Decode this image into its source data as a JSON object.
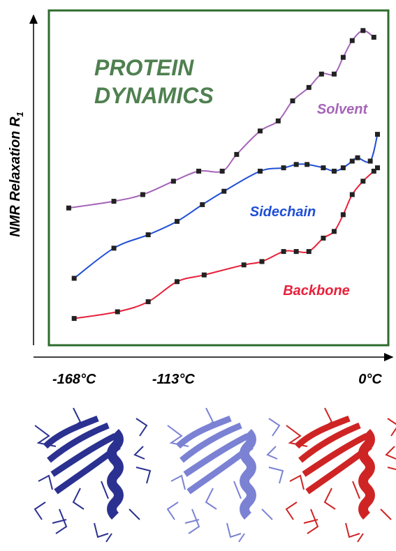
{
  "chart_data": {
    "type": "scatter",
    "title": "PROTEIN DYNAMICS",
    "y_label": "NMR Relaxation R",
    "y_label_subscript": "1",
    "xlim": [
      -182,
      6
    ],
    "ylim": [
      0,
      100
    ],
    "xticks": [
      {
        "value": -168,
        "label": "-168°C"
      },
      {
        "value": -113,
        "label": "-113°C"
      },
      {
        "value": 0,
        "label": "0°C"
      }
    ],
    "frame_color": "#2e6b2e",
    "title_color": "#4f8050",
    "marker_color": "#222222",
    "series": [
      {
        "name": "Solvent",
        "color": "#a564b8",
        "x": [
          -171,
          -146,
          -130,
          -113,
          -99,
          -86,
          -78,
          -65,
          -55,
          -47,
          -38,
          -31,
          -24,
          -19,
          -14,
          -8,
          -2
        ],
        "values": [
          41,
          43,
          45,
          49,
          52,
          52,
          57,
          64,
          67,
          73,
          77,
          81,
          81,
          86,
          91,
          94,
          92
        ]
      },
      {
        "name": "Sidechain",
        "color": "#1f4fd6",
        "x": [
          -168,
          -146,
          -127,
          -111,
          -97,
          -85,
          -65,
          -52,
          -45,
          -39,
          -30,
          -24,
          -19,
          -14,
          -11,
          -4,
          0
        ],
        "values": [
          20,
          29,
          33,
          37,
          42,
          46,
          52,
          53,
          54,
          54,
          53,
          52,
          53,
          55,
          56,
          55,
          63
        ]
      },
      {
        "name": "Backbone",
        "color": "#e8203a",
        "x": [
          -168,
          -144,
          -127,
          -111,
          -96,
          -74,
          -64,
          -52,
          -45,
          -38,
          -30,
          -24,
          -19,
          -14,
          -8,
          -2,
          0
        ],
        "values": [
          8,
          10,
          13,
          19,
          21,
          24,
          25,
          28,
          28,
          28,
          32,
          34,
          39,
          45,
          49,
          52,
          53
        ]
      }
    ]
  }
}
